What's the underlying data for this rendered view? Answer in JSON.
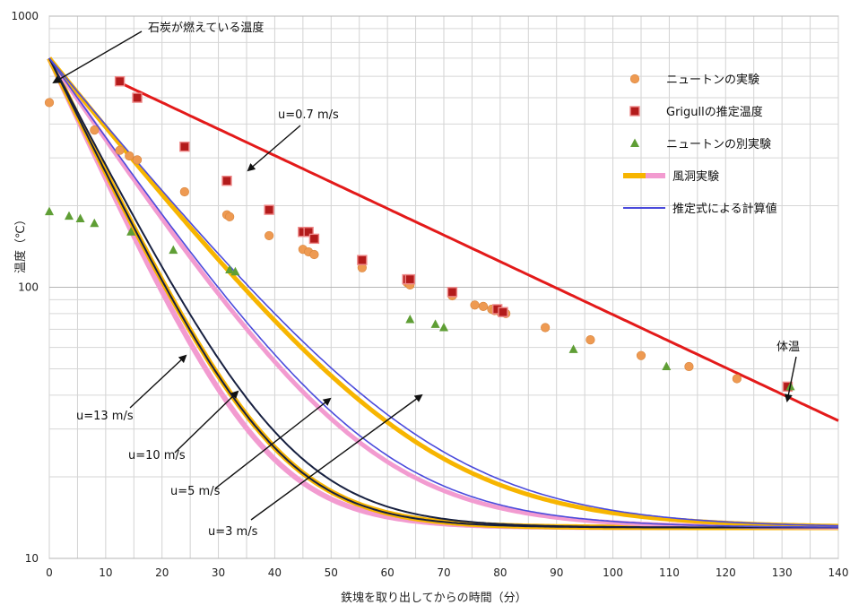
{
  "chart_data": {
    "type": "scatter",
    "xlabel": "鉄塊を取り出してからの時間（分）",
    "ylabel": "温度（℃）",
    "xlim": [
      0,
      140
    ],
    "ylim": [
      10,
      1000
    ],
    "yscale": "log",
    "xticks": [
      0,
      10,
      20,
      30,
      40,
      50,
      60,
      70,
      80,
      90,
      100,
      110,
      120,
      130,
      140
    ],
    "yticks": [
      {
        "value": 10,
        "label": "10"
      },
      {
        "value": 100,
        "label": "100"
      },
      {
        "value": 1000,
        "label": "1000"
      }
    ],
    "grid": true,
    "legend_position": "top-right",
    "colors": {
      "newton": "#ee9a52",
      "grigull": "#b31b1b",
      "newton_alt": "#5f9e35",
      "tunnel": "#f7b500",
      "tunnel_alt": "#f29bd0",
      "calc": "#4b4bdc",
      "calc_dark": "#172040",
      "fit": "#e31a1a"
    },
    "series": [
      {
        "name": "ニュートンの実験",
        "marker": "circle",
        "points": [
          [
            0,
            480
          ],
          [
            8,
            380
          ],
          [
            12.5,
            320
          ],
          [
            14.2,
            305
          ],
          [
            15.6,
            295
          ],
          [
            24,
            225
          ],
          [
            31.5,
            185
          ],
          [
            32,
            182
          ],
          [
            39,
            155
          ],
          [
            45,
            138
          ],
          [
            46,
            135
          ],
          [
            47,
            132
          ],
          [
            55.5,
            118
          ],
          [
            63.5,
            104
          ],
          [
            64,
            102
          ],
          [
            71.5,
            93
          ],
          [
            75.5,
            86
          ],
          [
            77,
            85
          ],
          [
            78.5,
            83
          ],
          [
            79,
            82
          ],
          [
            80,
            81
          ],
          [
            81,
            80
          ],
          [
            88,
            71
          ],
          [
            96,
            64
          ],
          [
            105,
            56
          ],
          [
            113.5,
            51
          ],
          [
            122,
            46
          ],
          [
            131,
            43
          ]
        ]
      },
      {
        "name": "Grigullの推定温度",
        "marker": "square",
        "points": [
          [
            12.5,
            575
          ],
          [
            15.6,
            500
          ],
          [
            24,
            330
          ],
          [
            31.5,
            247
          ],
          [
            39,
            193
          ],
          [
            45,
            160
          ],
          [
            46,
            160
          ],
          [
            47,
            151
          ],
          [
            55.5,
            126
          ],
          [
            63.5,
            107
          ],
          [
            64,
            107
          ],
          [
            71.5,
            96
          ],
          [
            79.5,
            83
          ],
          [
            80.5,
            81
          ],
          [
            131,
            43
          ]
        ]
      },
      {
        "name": "ニュートンの別実験",
        "marker": "triangle",
        "points": [
          [
            0,
            190
          ],
          [
            3.5,
            183
          ],
          [
            5.5,
            179
          ],
          [
            8,
            172
          ],
          [
            14.5,
            160
          ],
          [
            22,
            137
          ],
          [
            32,
            116
          ],
          [
            33,
            114
          ],
          [
            64,
            76
          ],
          [
            68.5,
            73
          ],
          [
            70,
            71
          ],
          [
            93,
            59
          ],
          [
            109.5,
            51
          ],
          [
            131.5,
            43
          ]
        ]
      },
      {
        "name": "風洞実験",
        "style": "thick-line"
      },
      {
        "name": "推定式による計算値",
        "style": "line"
      },
      {
        "name": "",
        "style": "fit-line"
      }
    ],
    "annotations": [
      {
        "text": "石炭が燃えている温度"
      },
      {
        "text": "u=0.7 m/s"
      },
      {
        "text": "体温"
      },
      {
        "text": "u=13 m/s"
      },
      {
        "text": "u=10 m/s"
      },
      {
        "text": "u=5 m/s"
      },
      {
        "text": "u=3 m/s"
      }
    ]
  }
}
